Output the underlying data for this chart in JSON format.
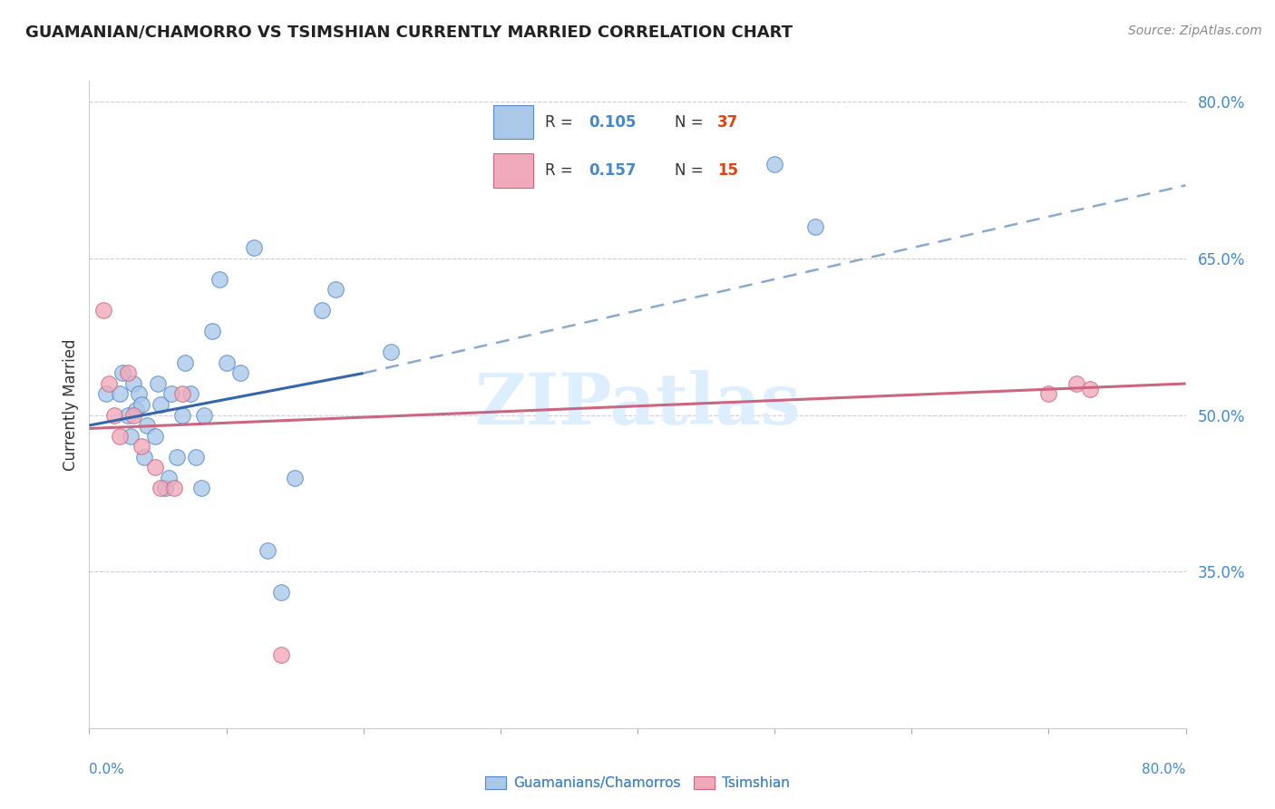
{
  "title": "GUAMANIAN/CHAMORRO VS TSIMSHIAN CURRENTLY MARRIED CORRELATION CHART",
  "source": "Source: ZipAtlas.com",
  "ylabel": "Currently Married",
  "watermark": "ZIPatlas",
  "blue_scatter": {
    "x": [
      0.012,
      0.022,
      0.024,
      0.028,
      0.03,
      0.032,
      0.034,
      0.036,
      0.038,
      0.04,
      0.042,
      0.048,
      0.05,
      0.052,
      0.055,
      0.058,
      0.06,
      0.064,
      0.068,
      0.07,
      0.074,
      0.078,
      0.082,
      0.084,
      0.09,
      0.095,
      0.1,
      0.11,
      0.12,
      0.13,
      0.14,
      0.15,
      0.17,
      0.18,
      0.22,
      0.5,
      0.53
    ],
    "y": [
      0.52,
      0.52,
      0.54,
      0.5,
      0.48,
      0.53,
      0.505,
      0.52,
      0.51,
      0.46,
      0.49,
      0.48,
      0.53,
      0.51,
      0.43,
      0.44,
      0.52,
      0.46,
      0.5,
      0.55,
      0.52,
      0.46,
      0.43,
      0.5,
      0.58,
      0.63,
      0.55,
      0.54,
      0.66,
      0.37,
      0.33,
      0.44,
      0.6,
      0.62,
      0.56,
      0.74,
      0.68
    ]
  },
  "pink_scatter": {
    "x": [
      0.01,
      0.014,
      0.018,
      0.022,
      0.028,
      0.032,
      0.038,
      0.048,
      0.052,
      0.062,
      0.068,
      0.14,
      0.7,
      0.72,
      0.73
    ],
    "y": [
      0.6,
      0.53,
      0.5,
      0.48,
      0.54,
      0.5,
      0.47,
      0.45,
      0.43,
      0.43,
      0.52,
      0.27,
      0.52,
      0.53,
      0.525
    ]
  },
  "blue_solid_line": {
    "x": [
      0.0,
      0.2
    ],
    "y": [
      0.49,
      0.54
    ]
  },
  "blue_dashed_line": {
    "x": [
      0.2,
      0.8
    ],
    "y": [
      0.54,
      0.72
    ]
  },
  "pink_solid_line": {
    "x": [
      0.0,
      0.8
    ],
    "y": [
      0.487,
      0.53
    ]
  },
  "xlim": [
    0.0,
    0.8
  ],
  "ylim": [
    0.2,
    0.82
  ],
  "yticks": [
    0.35,
    0.5,
    0.65,
    0.8
  ],
  "ytick_labels": [
    "35.0%",
    "50.0%",
    "65.0%",
    "80.0%"
  ],
  "xtick_positions": [
    0.0,
    0.1,
    0.2,
    0.3,
    0.4,
    0.5,
    0.6,
    0.7,
    0.8
  ],
  "colors": {
    "blue_scatter_face": "#aac8e8",
    "blue_scatter_edge": "#5588cc",
    "blue_line": "#3366aa",
    "blue_dashed": "#88aad0",
    "pink_scatter_face": "#f0aabb",
    "pink_scatter_edge": "#cc6680",
    "pink_line": "#cc6680",
    "grid": "#ccccdd",
    "title": "#222222",
    "source": "#888888",
    "legend_text_dark": "#333333",
    "legend_R_blue": "#4488cc",
    "legend_N_red": "#dd4411",
    "watermark": "#ddeeff",
    "ylabel": "#333333",
    "ytick_color": "#4488cc",
    "bottom_label_color": "#4488cc",
    "spine": "#cccccc"
  },
  "legend_labels": [
    "Guamanians/Chamorros",
    "Tsimshian"
  ],
  "background": "#ffffff"
}
